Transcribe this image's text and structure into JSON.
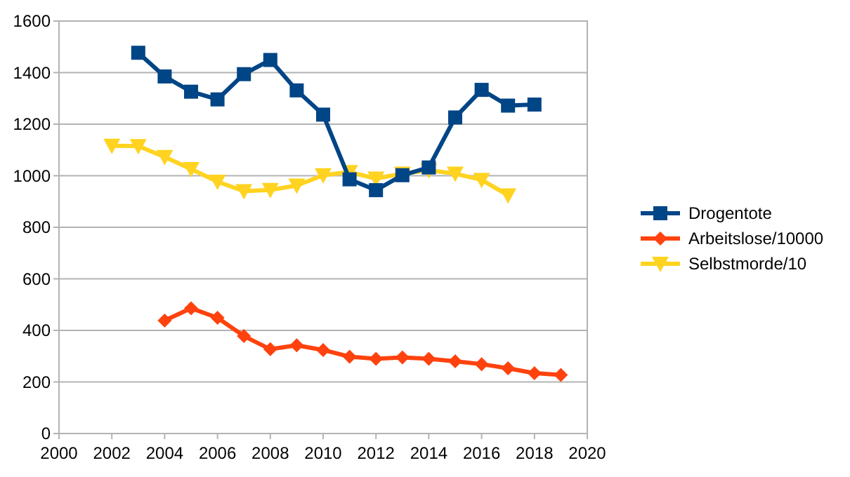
{
  "chart_data": {
    "type": "line",
    "x": [
      2002,
      2003,
      2004,
      2005,
      2006,
      2007,
      2008,
      2009,
      2010,
      2011,
      2012,
      2013,
      2014,
      2015,
      2016,
      2017,
      2018,
      2019
    ],
    "series": [
      {
        "name": "Drogentote",
        "color": "#004586",
        "marker": "square",
        "values": [
          null,
          1477,
          1385,
          1326,
          1296,
          1394,
          1449,
          1331,
          1237,
          986,
          944,
          1002,
          1032,
          1226,
          1333,
          1272,
          1276,
          null
        ]
      },
      {
        "name": "Arbeitslose/10000",
        "color": "#ff420e",
        "marker": "diamond",
        "values": [
          null,
          null,
          438,
          486,
          449,
          378,
          327,
          342,
          324,
          298,
          290,
          295,
          290,
          280,
          269,
          253,
          234,
          227
        ]
      },
      {
        "name": "Selbstmorde/10",
        "color": "#ffd320",
        "marker": "triangle",
        "values": [
          1116,
          1115,
          1073,
          1026,
          977,
          940,
          945,
          962,
          1002,
          1014,
          989,
          1008,
          1021,
          1008,
          984,
          924,
          null,
          null
        ]
      }
    ],
    "xlim": [
      2000,
      2020
    ],
    "xticks": [
      2000,
      2002,
      2004,
      2006,
      2008,
      2010,
      2012,
      2014,
      2016,
      2018,
      2020
    ],
    "ylim": [
      0,
      1600
    ],
    "yticks": [
      0,
      200,
      400,
      600,
      800,
      1000,
      1200,
      1400,
      1600
    ],
    "grid": "y",
    "legend": "right"
  }
}
